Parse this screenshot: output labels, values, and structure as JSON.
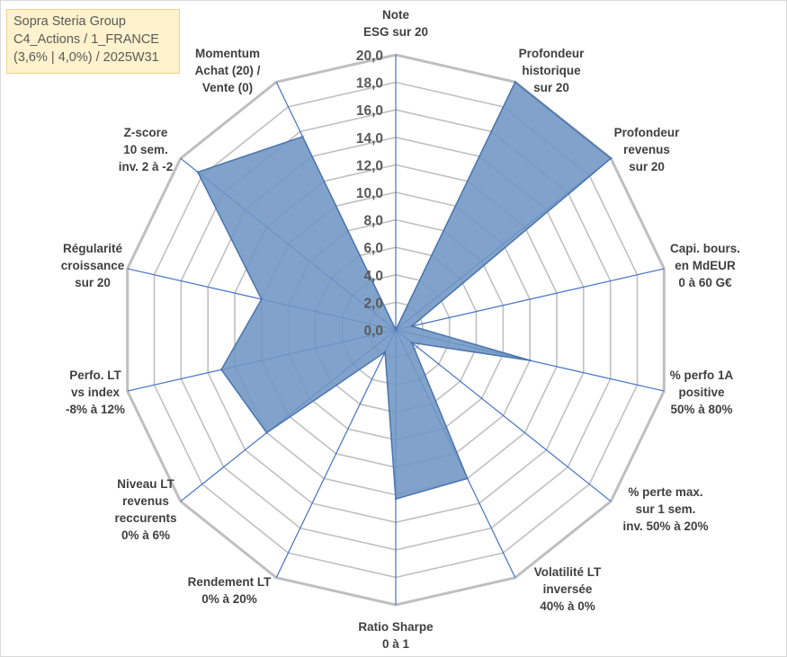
{
  "title": {
    "lines": [
      "Sopra Steria Group",
      "C4_Actions / 1_FRANCE",
      "(3,6% | 4,0%) / 2025W31"
    ]
  },
  "colors": {
    "fill": "#6f96c4",
    "stroke": "#4a74ad",
    "grid": "#c0c0c0",
    "spoke": "#4472c4",
    "title_bg": "#fff2cc"
  },
  "chart_data": {
    "type": "radar",
    "title": "",
    "rlim": [
      0,
      20
    ],
    "ticks": [
      "0,0",
      "2,0",
      "4,0",
      "6,0",
      "8,0",
      "10,0",
      "12,0",
      "14,0",
      "16,0",
      "18,0",
      "20,0"
    ],
    "axes": [
      {
        "label": [
          "Note",
          "ESG sur 20"
        ],
        "value": 0
      },
      {
        "label": [
          "Profondeur",
          "historique",
          "sur 20"
        ],
        "value": 20
      },
      {
        "label": [
          "Profondeur",
          "revenus",
          "sur 20"
        ],
        "value": 20
      },
      {
        "label": [
          "Capi. bours.",
          "en MdEUR",
          "0 à 60 G€"
        ],
        "value": 1.2
      },
      {
        "label": [
          "% perfo 1A",
          "positive",
          "50% à 80%"
        ],
        "value": 10
      },
      {
        "label": [
          "% perte max.",
          "sur 1 sem.",
          "inv. 50% à 20%"
        ],
        "value": 1.5
      },
      {
        "label": [
          "Volatilité LT",
          "inversée",
          "40% à 0%"
        ],
        "value": 12
      },
      {
        "label": [
          "Ratio Sharpe",
          "0 à 1"
        ],
        "value": 12.3
      },
      {
        "label": [
          "Rendement LT",
          "0% à 20%"
        ],
        "value": 1.8
      },
      {
        "label": [
          "Niveau LT",
          "revenus",
          "reccurents",
          "0% à 6%"
        ],
        "value": 12
      },
      {
        "label": [
          "Perfo. LT",
          "vs index",
          "-8% à 12%"
        ],
        "value": 13
      },
      {
        "label": [
          "Régularité",
          "croissance",
          "sur 20"
        ],
        "value": 10
      },
      {
        "label": [
          "Z-score",
          "10 sem.",
          "inv. 2 à -2"
        ],
        "value": 18.4
      },
      {
        "label": [
          "Momentum",
          "Achat (20) /",
          "Vente (0)"
        ],
        "value": 15.6
      }
    ],
    "grid": true,
    "legend": "none"
  }
}
